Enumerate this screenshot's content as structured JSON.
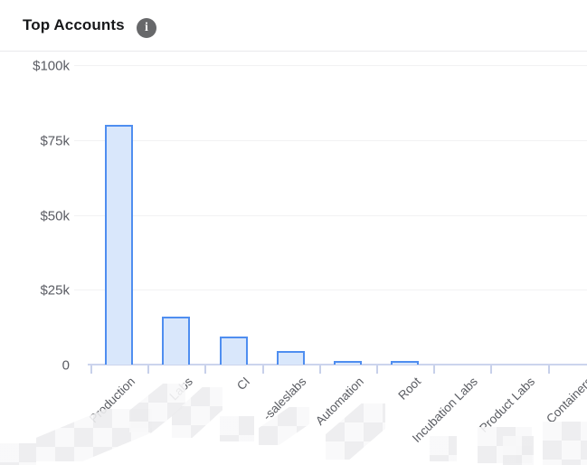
{
  "header": {
    "title": "Top Accounts",
    "info_icon_glyph": "i"
  },
  "chart_data": {
    "type": "bar",
    "title": "Top Accounts",
    "unit": "USD",
    "categories": [
      "Production",
      "Labs",
      "CI",
      "-saleslabs",
      "Automation",
      "Root",
      "Incubation Labs",
      "Product Labs",
      "Containers"
    ],
    "categories_prefix_redacted": [
      false,
      true,
      true,
      true,
      false,
      false,
      false,
      false,
      false
    ],
    "values": [
      80000,
      16000,
      9500,
      4500,
      1200,
      1100,
      0,
      0,
      0
    ],
    "y_ticks": [
      {
        "label": "$100k",
        "value": 100000
      },
      {
        "label": "$75k",
        "value": 75000
      },
      {
        "label": "$50k",
        "value": 50000
      },
      {
        "label": "$25k",
        "value": 25000
      },
      {
        "label": "0",
        "value": 0
      }
    ],
    "ylim": [
      0,
      100000
    ],
    "grid": true,
    "legend": "none",
    "bar_fill_color": "#d9e7fb",
    "bar_border_color": "#4f8ef0",
    "axis_color": "#ccd4ed",
    "label_color": "#5a5c62"
  }
}
